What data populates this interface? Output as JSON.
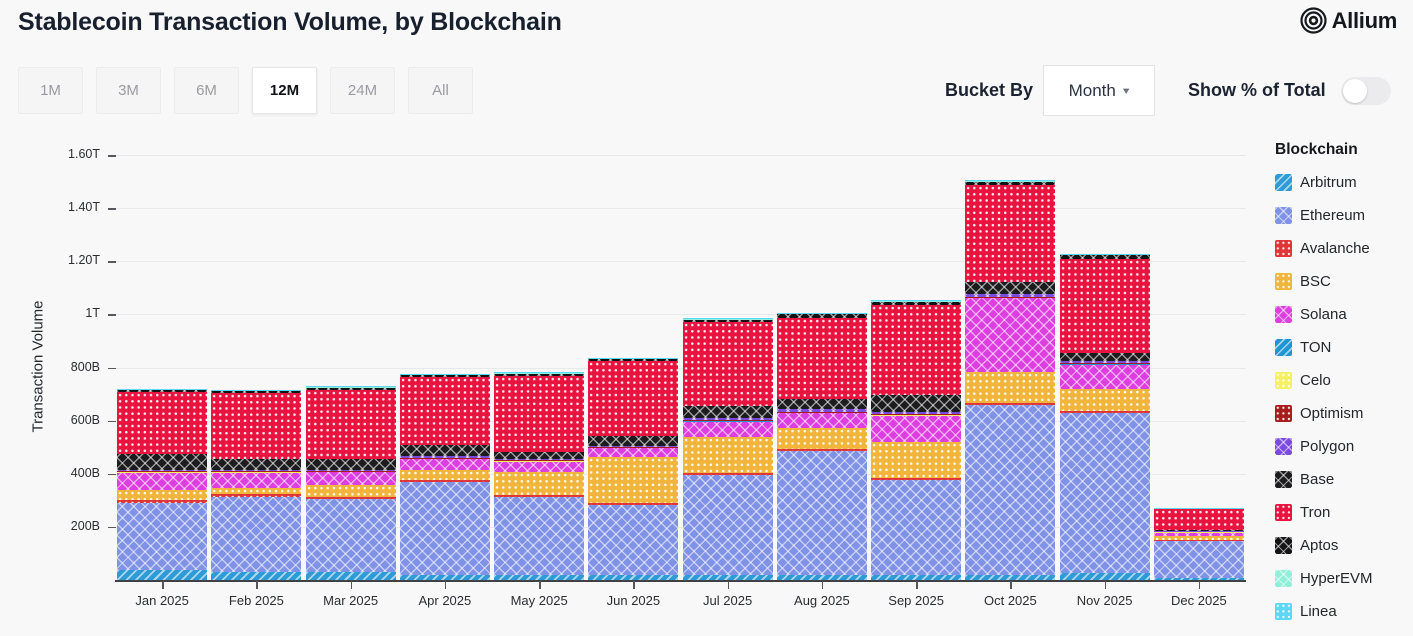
{
  "header": {
    "title": "Stablecoin Transaction Volume, by Blockchain",
    "brand": "Allium"
  },
  "controls": {
    "range_buttons": [
      {
        "label": "1M",
        "active": false
      },
      {
        "label": "3M",
        "active": false
      },
      {
        "label": "6M",
        "active": false
      },
      {
        "label": "12M",
        "active": true
      },
      {
        "label": "24M",
        "active": false
      },
      {
        "label": "All",
        "active": false
      }
    ],
    "bucket_by_label": "Bucket By",
    "bucket_value": "Month",
    "show_pct_label": "Show % of Total",
    "toggle_state": "off"
  },
  "legend": {
    "title": "Blockchain"
  },
  "chart_data": {
    "type": "bar",
    "stacked": true,
    "title": "Stablecoin Transaction Volume, by Blockchain",
    "xlabel": "",
    "ylabel": "Transaction Volume",
    "unit": "USD (B = billions, T = trillions)",
    "ylim": [
      0,
      1600
    ],
    "grid": true,
    "legend_position": "right",
    "categories": [
      "Jan 2025",
      "Feb 2025",
      "Mar 2025",
      "Apr 2025",
      "May 2025",
      "Jun 2025",
      "Jul 2025",
      "Aug 2025",
      "Sep 2025",
      "Oct 2025",
      "Nov 2025",
      "Dec 2025"
    ],
    "y_ticks": [
      {
        "value": 200,
        "label": "200B"
      },
      {
        "value": 400,
        "label": "400B"
      },
      {
        "value": 600,
        "label": "600B"
      },
      {
        "value": 800,
        "label": "800B"
      },
      {
        "value": 1000,
        "label": "1T"
      },
      {
        "value": 1200,
        "label": "1.20T"
      },
      {
        "value": 1400,
        "label": "1.40T"
      },
      {
        "value": 1600,
        "label": "1.60T"
      }
    ],
    "series": [
      {
        "name": "Arbitrum",
        "color": "#2e9bd6",
        "pattern": "diagonal",
        "values": [
          38,
          30,
          30,
          19,
          19,
          19,
          19,
          19,
          19,
          19,
          28,
          8
        ]
      },
      {
        "name": "Ethereum",
        "color": "#8092e6",
        "pattern": "diamond",
        "values": [
          252,
          284,
          275,
          350,
          294,
          263,
          376,
          467,
          357,
          640,
          600,
          138
        ]
      },
      {
        "name": "Avalanche",
        "color": "#e03538",
        "pattern": "dots",
        "values": [
          10,
          8,
          8,
          8,
          8,
          8,
          8,
          8,
          8,
          8,
          8,
          3
        ]
      },
      {
        "name": "BSC",
        "color": "#f2b53c",
        "pattern": "dots",
        "values": [
          38,
          26,
          45,
          38,
          87,
          173,
          135,
          79,
          135,
          117,
          83,
          15
        ]
      },
      {
        "name": "Solana",
        "color": "#dd3ee0",
        "pattern": "diamond",
        "values": [
          67,
          56,
          49,
          41,
          38,
          34,
          60,
          56,
          101,
          278,
          94,
          16
        ]
      },
      {
        "name": "TON",
        "color": "#1e96d4",
        "pattern": "diagonal",
        "values": [
          2,
          2,
          2,
          2,
          2,
          2,
          2,
          2,
          2,
          2,
          2,
          1
        ]
      },
      {
        "name": "Celo",
        "color": "#f5f163",
        "pattern": "dots",
        "values": [
          1,
          1,
          1,
          1,
          1,
          1,
          1,
          1,
          1,
          1,
          1,
          1
        ]
      },
      {
        "name": "Optimism",
        "color": "#a81c1c",
        "pattern": "dots",
        "values": [
          2,
          2,
          2,
          2,
          2,
          2,
          2,
          2,
          2,
          2,
          2,
          1
        ]
      },
      {
        "name": "Polygon",
        "color": "#7b4be0",
        "pattern": "diamond",
        "values": [
          4,
          4,
          4,
          4,
          4,
          4,
          8,
          8,
          8,
          8,
          8,
          3
        ]
      },
      {
        "name": "Base",
        "color": "#1c1c1e",
        "pattern": "diamond",
        "values": [
          62,
          43,
          38,
          44,
          26,
          38,
          45,
          41,
          64,
          48,
          30,
          4
        ]
      },
      {
        "name": "Tron",
        "color": "#e91340",
        "pattern": "dots",
        "values": [
          230,
          249,
          262,
          255,
          288,
          280,
          316,
          305,
          339,
          365,
          354,
          76
        ]
      },
      {
        "name": "Aptos",
        "color": "#141416",
        "pattern": "diamond",
        "values": [
          11,
          8,
          11,
          11,
          11,
          11,
          11,
          15,
          15,
          15,
          15,
          4
        ]
      },
      {
        "name": "HyperEVM",
        "color": "#8fefd8",
        "pattern": "diamond",
        "values": [
          1,
          1,
          1,
          1,
          1,
          1,
          1,
          1,
          1,
          1,
          1,
          1
        ]
      },
      {
        "name": "Linea",
        "color": "#5ed6f8",
        "pattern": "dots",
        "values": [
          1,
          1,
          1,
          1,
          1,
          1,
          1,
          1,
          1,
          1,
          1,
          1
        ]
      }
    ]
  }
}
